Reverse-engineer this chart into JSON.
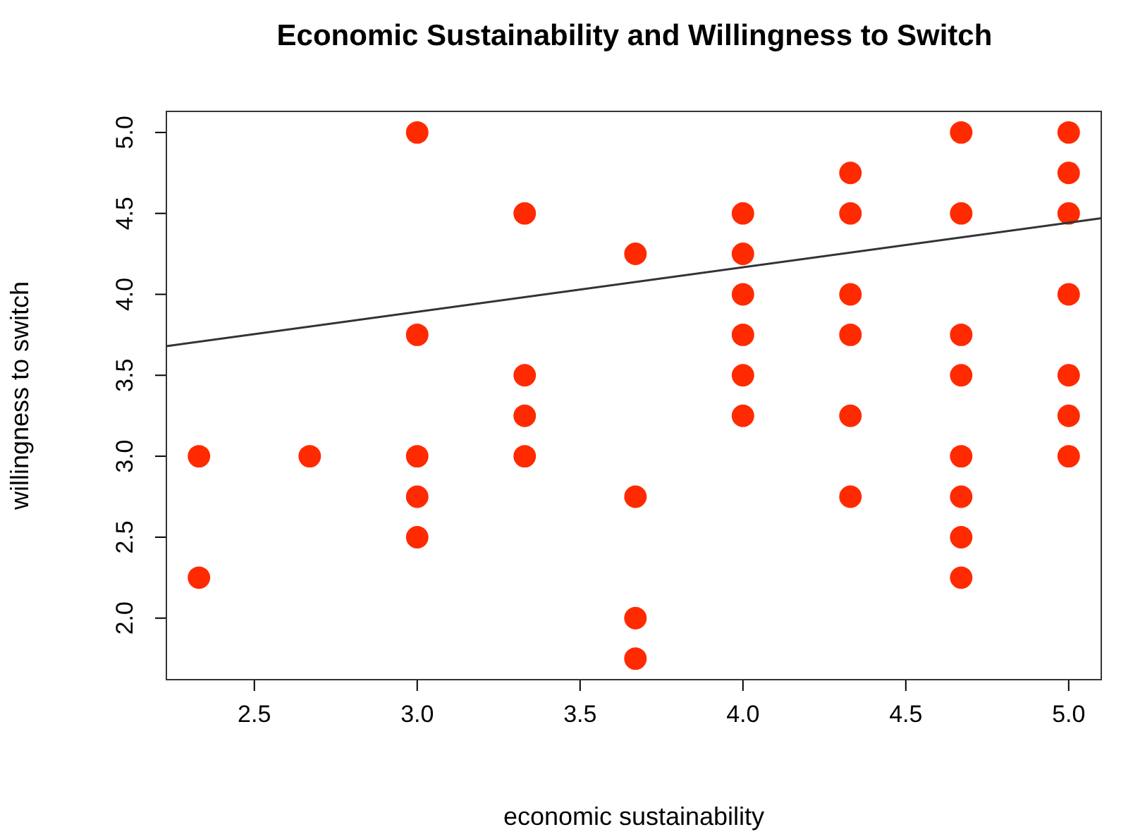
{
  "chart_data": {
    "type": "scatter",
    "title": "Economic Sustainability and Willingness to Switch",
    "xlabel": "economic sustainability",
    "ylabel": "willingness to switch",
    "xlim": [
      2.23,
      5.1
    ],
    "ylim": [
      1.62,
      5.13
    ],
    "xticks": [
      {
        "value": 2.5,
        "label": "2.5"
      },
      {
        "value": 3.0,
        "label": "3.0"
      },
      {
        "value": 3.5,
        "label": "3.5"
      },
      {
        "value": 4.0,
        "label": "4.0"
      },
      {
        "value": 4.5,
        "label": "4.5"
      },
      {
        "value": 5.0,
        "label": "5.0"
      }
    ],
    "yticks": [
      {
        "value": 2.0,
        "label": "2.0"
      },
      {
        "value": 2.5,
        "label": "2.5"
      },
      {
        "value": 3.0,
        "label": "3.0"
      },
      {
        "value": 3.5,
        "label": "3.5"
      },
      {
        "value": 4.0,
        "label": "4.0"
      },
      {
        "value": 4.5,
        "label": "4.5"
      },
      {
        "value": 5.0,
        "label": "5.0"
      }
    ],
    "grid": false,
    "series": [
      {
        "marker": "circle",
        "color": "#ff2a00",
        "x": [
          2.33,
          2.33,
          2.67,
          3.0,
          3.0,
          3.0,
          3.0,
          3.0,
          3.33,
          3.33,
          3.33,
          3.33,
          3.67,
          3.67,
          3.67,
          3.67,
          4.0,
          4.0,
          4.0,
          4.0,
          4.0,
          4.0,
          4.33,
          4.33,
          4.33,
          4.33,
          4.33,
          4.33,
          4.67,
          4.67,
          4.67,
          4.67,
          4.67,
          4.67,
          4.67,
          4.67,
          5.0,
          5.0,
          5.0,
          5.0,
          5.0,
          5.0,
          5.0
        ],
        "values": [
          3.0,
          2.25,
          3.0,
          5.0,
          3.75,
          3.0,
          2.75,
          2.5,
          4.5,
          3.5,
          3.25,
          3.0,
          4.25,
          2.75,
          2.0,
          1.75,
          4.5,
          4.25,
          4.0,
          3.75,
          3.5,
          3.25,
          4.75,
          4.5,
          4.0,
          3.75,
          3.25,
          2.75,
          5.0,
          4.5,
          3.75,
          3.5,
          3.0,
          2.75,
          2.5,
          2.25,
          5.0,
          4.75,
          4.5,
          4.0,
          3.5,
          3.25,
          3.0
        ]
      },
      {
        "type": "line",
        "color": "#333333",
        "x": [
          2.23,
          5.1
        ],
        "values": [
          3.68,
          4.47
        ]
      }
    ]
  }
}
